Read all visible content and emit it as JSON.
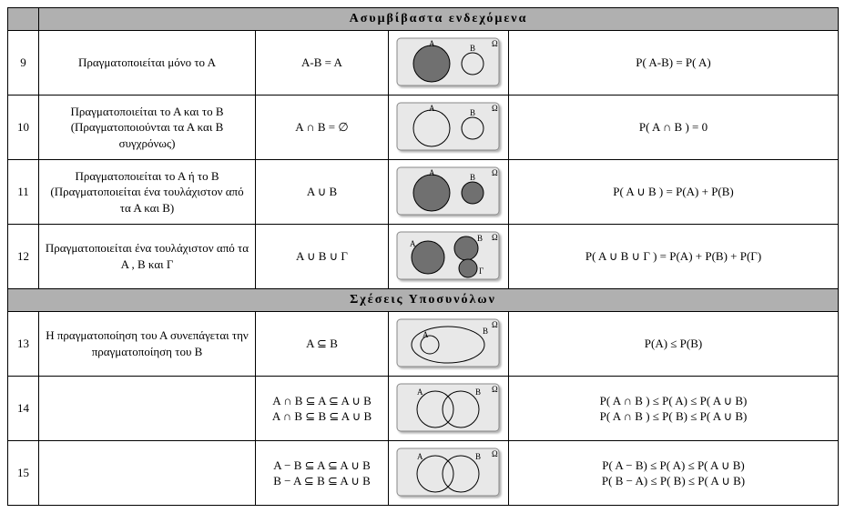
{
  "sections": [
    {
      "title": "Ασυμβίβαστα ενδεχόμενα",
      "rows": [
        {
          "num": "9",
          "desc": "Πραγματοποιείται μόνο το Α",
          "set": "Α-Β = Α",
          "prob": "Ρ( Α-Β) = Ρ( Α)",
          "venn": "disjoint_A"
        },
        {
          "num": "10",
          "desc": "Πραγματοποιείται το Α και το Β (Πραγματοποιούνται τα Α και Β συγχρόνως)",
          "set": "Α ∩ Β = ∅",
          "prob": "Ρ( Α ∩ Β ) = 0",
          "venn": "disjoint_none"
        },
        {
          "num": "11",
          "desc": "Πραγματοποιείται το Α ή το Β (Πραγματοποιείται ένα τουλάχιστον από τα Α και Β)",
          "set": "Α ∪ Β",
          "prob": "Ρ( Α ∪ Β ) = Ρ(Α) + Ρ(Β)",
          "venn": "disjoint_AB"
        },
        {
          "num": "12",
          "desc": "Πραγματοποιείται ένα τουλάχιστον από τα Α , Β και Γ",
          "set": "Α ∪ Β ∪ Γ",
          "prob": "Ρ( Α ∪ Β ∪ Γ ) = Ρ(Α) + Ρ(Β) + Ρ(Γ)",
          "venn": "three_ABG"
        }
      ]
    },
    {
      "title": "Σχέσεις Υποσυνόλων",
      "rows": [
        {
          "num": "13",
          "desc": "Η πραγματοποίηση του Α συνεπάγεται την πραγματοποίηση του Β",
          "set": "Α ⊆ Β",
          "prob": "Ρ(Α) ≤ Ρ(Β)",
          "venn": "subset"
        },
        {
          "num": "14",
          "desc": "",
          "set_lines": [
            "Α ∩ Β ⊆ Α ⊆ Α ∪ Β",
            "Α ∩ Β ⊆ Β ⊆ Α ∪ Β"
          ],
          "prob_lines": [
            "Ρ( Α ∩ Β ) ≤ Ρ( Α) ≤ Ρ( Α ∪ Β)",
            "Ρ( Α ∩ Β ) ≤ Ρ( Β) ≤ Ρ( Α ∪ Β)"
          ],
          "venn": "overlap_none"
        },
        {
          "num": "15",
          "desc": "",
          "set_lines": [
            "Α − Β ⊆ Α ⊆ Α ∪ Β",
            "Β − Α ⊆ Β ⊆ Α ∪ Β"
          ],
          "prob_lines": [
            "Ρ( Α − Β) ≤ Ρ( Α) ≤ Ρ( Α ∪ Β)",
            "Ρ( Β − Α) ≤ Ρ( Β) ≤ Ρ( Α ∪ Β)"
          ],
          "venn": "overlap_none"
        }
      ]
    }
  ],
  "venn_style": {
    "rect_fill": "#e8e8e8",
    "rect_stroke": "#888",
    "fill_dark": "#707070",
    "fill_light": "#e8e8e8",
    "stroke": "#000",
    "label_color": "#000",
    "omega_label": "Ω",
    "label_A": "A",
    "label_B": "B",
    "label_G": "Γ"
  }
}
